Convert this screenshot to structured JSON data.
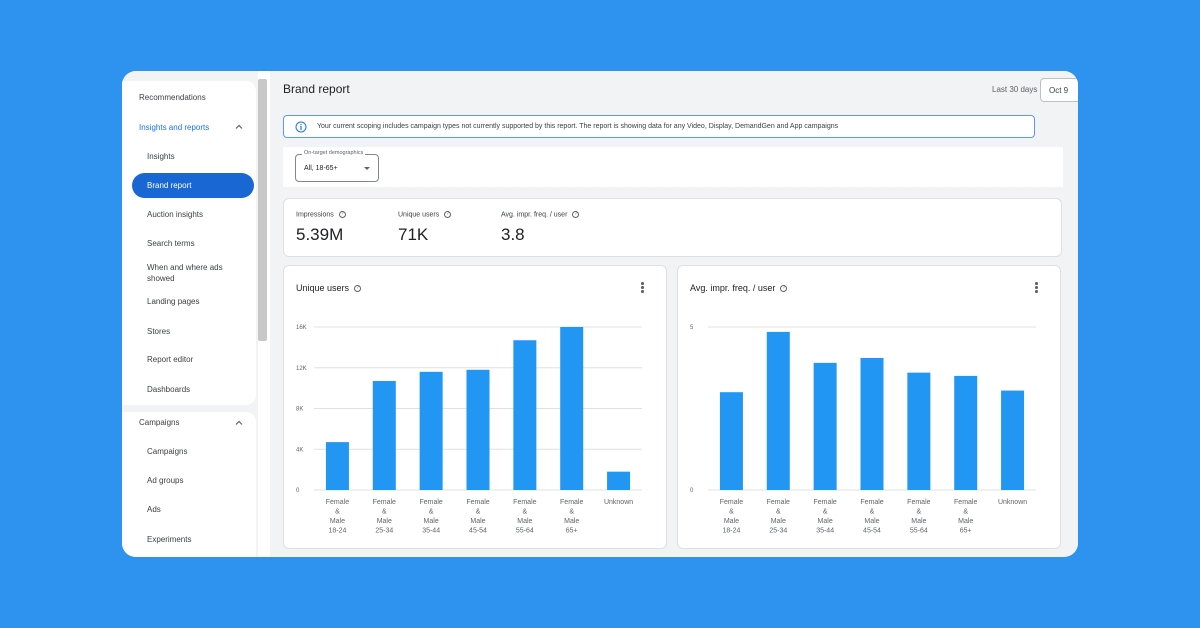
{
  "sidebar": {
    "recommendations": "Recommendations",
    "insights_reports_header": "Insights and reports",
    "items": [
      "Insights",
      "Brand report",
      "Auction insights",
      "Search terms",
      "When and where ads",
      "showed",
      "Landing pages",
      "Stores",
      "Report editor",
      "Dashboards"
    ],
    "campaigns_header": "Campaigns",
    "campaign_items": [
      "Campaigns",
      "Ad groups",
      "Ads",
      "Experiments"
    ]
  },
  "header": {
    "title": "Brand report",
    "date_range_label": "Last 30 days",
    "date_value": "Oct 9"
  },
  "banner": {
    "text": "Your current scoping includes campaign types not currently supported by this report. The report is showing data for any Video, Display, DemandGen and App campaigns"
  },
  "filter": {
    "legend": "On-target demographics",
    "value": "All, 18-65+"
  },
  "metrics": [
    {
      "label": "Impressions",
      "value": "5.39M"
    },
    {
      "label": "Unique users",
      "value": "71K"
    },
    {
      "label": "Avg. impr. freq. / user",
      "value": "3.8"
    }
  ],
  "colors": {
    "bar": "#2196f3",
    "accent": "#1967d2",
    "background": "#2d93ef"
  },
  "chart_data": [
    {
      "type": "bar",
      "title": "Unique users",
      "categories": [
        [
          "Female",
          "&",
          "Male",
          "18-24"
        ],
        [
          "Female",
          "&",
          "Male",
          "25-34"
        ],
        [
          "Female",
          "&",
          "Male",
          "35-44"
        ],
        [
          "Female",
          "&",
          "Male",
          "45-54"
        ],
        [
          "Female",
          "&",
          "Male",
          "55-64"
        ],
        [
          "Female",
          "&",
          "Male",
          "65+"
        ],
        [
          "Unknown"
        ]
      ],
      "values": [
        4700,
        10700,
        11600,
        11800,
        14700,
        16000,
        1800
      ],
      "ylim": [
        0,
        16000
      ],
      "yticks": [
        0,
        4000,
        8000,
        12000,
        16000
      ],
      "ytick_labels": [
        "0",
        "4K",
        "8K",
        "12K",
        "16K"
      ]
    },
    {
      "type": "bar",
      "title": "Avg. impr. freq. / user",
      "categories": [
        [
          "Female",
          "&",
          "Male",
          "18-24"
        ],
        [
          "Female",
          "&",
          "Male",
          "25-34"
        ],
        [
          "Female",
          "&",
          "Male",
          "35-44"
        ],
        [
          "Female",
          "&",
          "Male",
          "45-54"
        ],
        [
          "Female",
          "&",
          "Male",
          "55-64"
        ],
        [
          "Female",
          "&",
          "Male",
          "65+"
        ],
        [
          "Unknown"
        ]
      ],
      "values": [
        3.0,
        4.85,
        3.9,
        4.05,
        3.6,
        3.5,
        3.05
      ],
      "ylim": [
        0,
        5
      ],
      "yticks": [
        0,
        5
      ],
      "ytick_labels": [
        "0",
        "5"
      ]
    }
  ]
}
